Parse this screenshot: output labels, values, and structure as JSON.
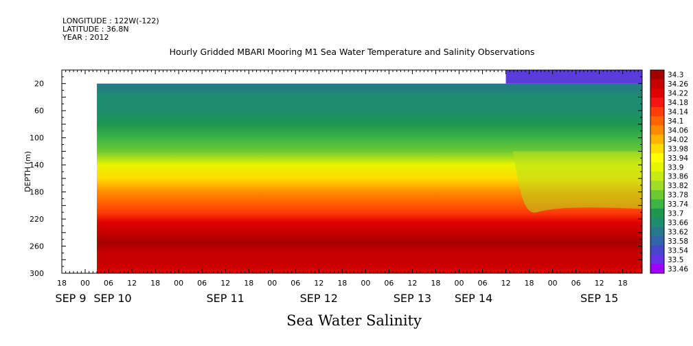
{
  "header": {
    "longitude": "LONGITUDE : 122W(-122)",
    "latitude": "LATITUDE : 36.8N",
    "year": "YEAR : 2012"
  },
  "title": "Hourly Gridded MBARI Mooring M1 Sea Water Temperature and Salinity Observations",
  "footer_title": "Sea Water Salinity",
  "chart_data": {
    "type": "heatmap",
    "title": "Hourly Gridded MBARI Mooring M1 Sea Water Temperature and Salinity Observations",
    "xlabel": "",
    "ylabel": "DEPTH (m)",
    "ylim": [
      300,
      0
    ],
    "y_ticks": [
      20,
      60,
      100,
      140,
      180,
      220,
      260,
      300
    ],
    "x_hour_ticks": [
      "18",
      "00",
      "06",
      "12",
      "18",
      "00",
      "06",
      "12",
      "18",
      "00",
      "06",
      "12",
      "18",
      "00",
      "06",
      "12",
      "18",
      "00",
      "06",
      "12",
      "18",
      "00",
      "06",
      "12",
      "18"
    ],
    "x_day_labels": [
      "SEP 9",
      "SEP 10",
      "SEP 11",
      "SEP 12",
      "SEP 13",
      "SEP 14",
      "SEP 15"
    ],
    "x_range": [
      "SEP 9 18:00",
      "SEP 15 23:00"
    ],
    "colorbar": {
      "levels": [
        "34.3",
        "34.26",
        "34.22",
        "34.18",
        "34.14",
        "34.1",
        "34.06",
        "34.02",
        "33.98",
        "33.94",
        "33.9",
        "33.86",
        "33.82",
        "33.78",
        "33.74",
        "33.7",
        "33.66",
        "33.62",
        "33.58",
        "33.54",
        "33.5",
        "33.46"
      ],
      "colors": [
        "#a50000",
        "#c80000",
        "#e10000",
        "#f51414",
        "#ff3c0a",
        "#ff6400",
        "#ff8c00",
        "#ffb400",
        "#ffdc00",
        "#ffff00",
        "#e6f500",
        "#c8eb14",
        "#a0dc28",
        "#6ec832",
        "#3cb446",
        "#1e9650",
        "#1e8c6e",
        "#28788c",
        "#3264aa",
        "#4646c8",
        "#6432e6",
        "#a000ff"
      ]
    },
    "profile": [
      {
        "depth": 20,
        "value": 33.6
      },
      {
        "depth": 40,
        "value": 33.63
      },
      {
        "depth": 60,
        "value": 33.66
      },
      {
        "depth": 80,
        "value": 33.69
      },
      {
        "depth": 100,
        "value": 33.71
      },
      {
        "depth": 120,
        "value": 33.78
      },
      {
        "depth": 140,
        "value": 33.88
      },
      {
        "depth": 160,
        "value": 33.97
      },
      {
        "depth": 180,
        "value": 34.03
      },
      {
        "depth": 195,
        "value": 34.07
      },
      {
        "depth": 210,
        "value": 34.14
      },
      {
        "depth": 225,
        "value": 34.19
      },
      {
        "depth": 240,
        "value": 34.23
      },
      {
        "depth": 255,
        "value": 34.27
      },
      {
        "depth": 270,
        "value": 34.26
      },
      {
        "depth": 285,
        "value": 34.23
      },
      {
        "depth": 300,
        "value": 34.2
      }
    ]
  }
}
